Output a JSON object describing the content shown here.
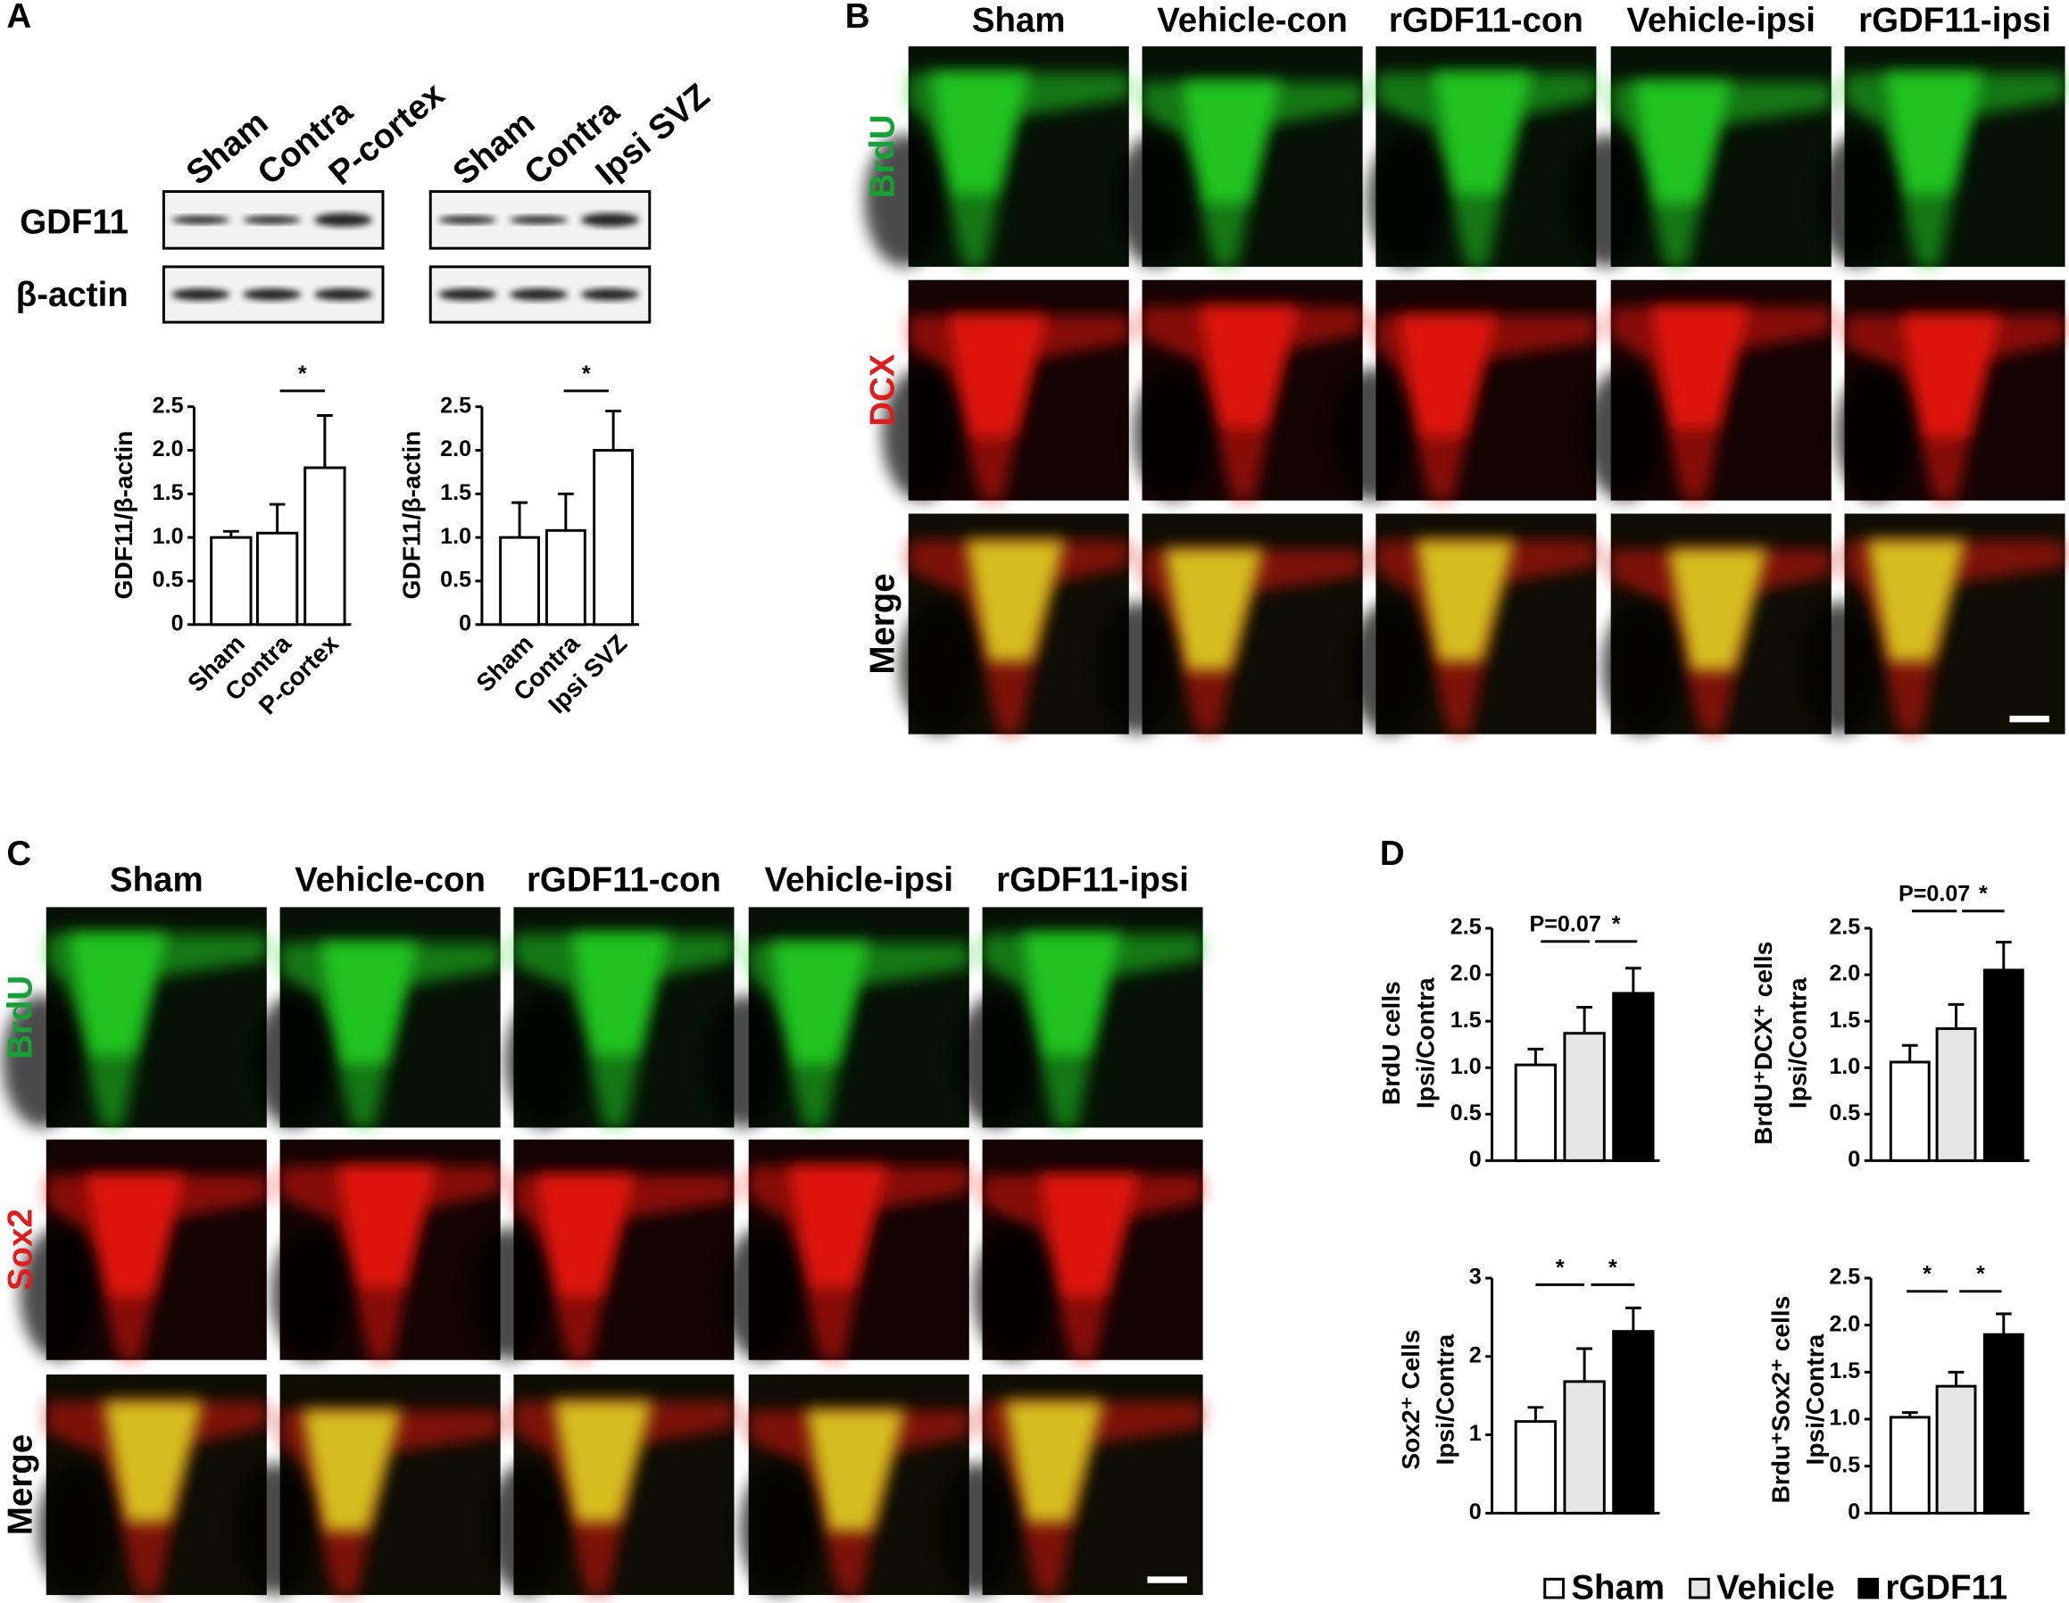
{
  "figure": {
    "panel_labels": [
      "A",
      "B",
      "C",
      "D"
    ],
    "blot": {
      "lanes_left": [
        "Sham",
        "Contra",
        "P-cortex"
      ],
      "lanes_right": [
        "Sham",
        "Contra",
        "Ipsi SVZ"
      ],
      "rows": [
        "GDF11",
        "β-actin"
      ]
    },
    "panel_b": {
      "columns": [
        "Sham",
        "Vehicle-con",
        "rGDF11-con",
        "Vehicle-ipsi",
        "rGDF11-ipsi"
      ],
      "rows": [
        "BrdU",
        "DCX",
        "Merge"
      ]
    },
    "panel_c": {
      "columns": [
        "Sham",
        "Vehicle-con",
        "rGDF11-con",
        "Vehicle-ipsi",
        "rGDF11-ipsi"
      ],
      "rows": [
        "BrdU",
        "Sox2",
        "Merge"
      ]
    }
  },
  "chart_data": [
    {
      "type": "bar",
      "ylabel": "GDF11/β-actin",
      "categories": [
        "Sham",
        "Contra",
        "P-cortex"
      ],
      "values": [
        1.0,
        1.05,
        1.8
      ],
      "errors": [
        0.07,
        0.33,
        0.6
      ],
      "color": "#ffffff",
      "ylim": [
        0,
        2.5
      ],
      "yticks": [
        0,
        0.5,
        {
          "value": 1,
          "label": "1.0"
        },
        1.5,
        {
          "value": 2,
          "label": "2.0"
        },
        2.5
      ],
      "annotations": [
        "*"
      ]
    },
    {
      "type": "bar",
      "ylabel": "GDF11/β-actin",
      "categories": [
        "Sham",
        "Contra",
        "Ipsi SVZ"
      ],
      "values": [
        1.0,
        1.08,
        2.0
      ],
      "errors": [
        0.4,
        0.42,
        0.45
      ],
      "color": "#ffffff",
      "ylim": [
        0,
        2.5
      ],
      "yticks": [
        0,
        0.5,
        {
          "value": 1,
          "label": "1.0"
        },
        1.5,
        {
          "value": 2,
          "label": "2.0"
        },
        2.5
      ],
      "annotations": [
        "*"
      ]
    },
    {
      "type": "bar",
      "ylabel": [
        "BrdU cells",
        "Ipsi/Contra"
      ],
      "series": [
        {
          "name": "Sham",
          "color": "#ffffff",
          "values": [
            1.03
          ],
          "errors": [
            0.17
          ]
        },
        {
          "name": "Vehicle",
          "color": "#e6e6e6",
          "values": [
            1.37
          ],
          "errors": [
            0.28
          ]
        },
        {
          "name": "rGDF11",
          "color": "#000000",
          "values": [
            1.8
          ],
          "errors": [
            0.27
          ]
        }
      ],
      "ylim": [
        0,
        2.5
      ],
      "yticks": [
        0,
        0.5,
        {
          "value": 1,
          "label": "1.0"
        },
        1.5,
        {
          "value": 2,
          "label": "2.0"
        },
        2.5
      ],
      "annotations": [
        "P=0.07",
        "*"
      ]
    },
    {
      "type": "bar",
      "ylabel": [
        "BrdU⁺DCX⁺ cells",
        "Ipsi/Contra"
      ],
      "series": [
        {
          "name": "Sham",
          "color": "#ffffff",
          "values": [
            1.06
          ],
          "errors": [
            0.18
          ]
        },
        {
          "name": "Vehicle",
          "color": "#e6e6e6",
          "values": [
            1.42
          ],
          "errors": [
            0.26
          ]
        },
        {
          "name": "rGDF11",
          "color": "#000000",
          "values": [
            2.05
          ],
          "errors": [
            0.3
          ]
        }
      ],
      "ylim": [
        0,
        2.5
      ],
      "yticks": [
        0,
        0.5,
        {
          "value": 1,
          "label": "1.0"
        },
        1.5,
        {
          "value": 2,
          "label": "2.0"
        },
        2.5
      ],
      "annotations": [
        "P=0.07",
        "*"
      ]
    },
    {
      "type": "bar",
      "ylabel": [
        "Sox2⁺ Cells",
        "Ipsi/Contra"
      ],
      "series": [
        {
          "name": "Sham",
          "color": "#ffffff",
          "values": [
            1.17
          ],
          "errors": [
            0.18
          ]
        },
        {
          "name": "Vehicle",
          "color": "#e6e6e6",
          "values": [
            1.68
          ],
          "errors": [
            0.42
          ]
        },
        {
          "name": "rGDF11",
          "color": "#000000",
          "values": [
            2.32
          ],
          "errors": [
            0.3
          ]
        }
      ],
      "ylim": [
        0,
        3
      ],
      "yticks": [
        0,
        1,
        2,
        3
      ],
      "annotations": [
        "*",
        "*"
      ]
    },
    {
      "type": "bar",
      "ylabel": [
        "Brdu⁺Sox2⁺ cells",
        "Ipsi/Contra"
      ],
      "series": [
        {
          "name": "Sham",
          "color": "#ffffff",
          "values": [
            1.02
          ],
          "errors": [
            0.05
          ]
        },
        {
          "name": "Vehicle",
          "color": "#e6e6e6",
          "values": [
            1.35
          ],
          "errors": [
            0.15
          ]
        },
        {
          "name": "rGDF11",
          "color": "#000000",
          "values": [
            1.9
          ],
          "errors": [
            0.22
          ]
        }
      ],
      "ylim": [
        0,
        2.5
      ],
      "yticks": [
        0,
        0.5,
        {
          "value": 1,
          "label": "1.0"
        },
        1.5,
        {
          "value": 2,
          "label": "2.0"
        },
        2.5
      ],
      "annotations": [
        "*",
        "*"
      ]
    }
  ]
}
